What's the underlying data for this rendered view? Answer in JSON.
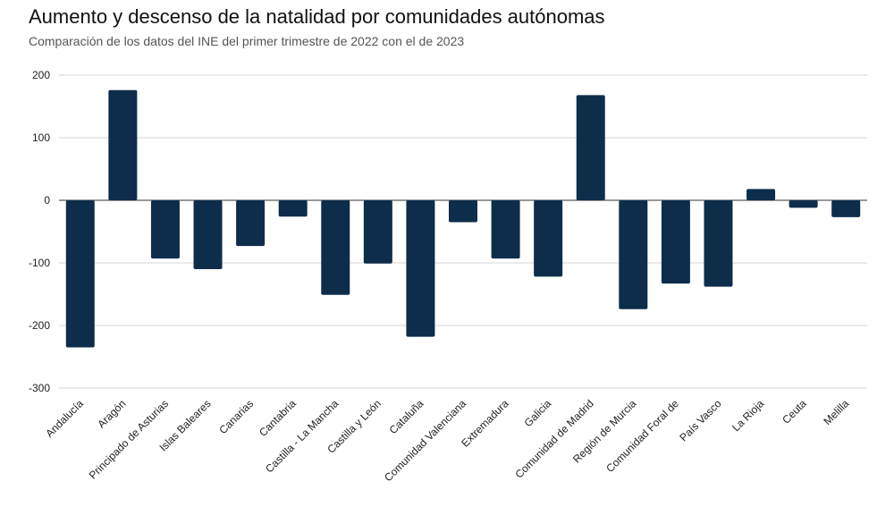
{
  "chart_data": {
    "type": "bar",
    "title": "Aumento y descenso de la natalidad por comunidades autónomas",
    "subtitle": "Comparación de los datos del INE del primer trimestre de 2022 con el de 2023",
    "xlabel": "",
    "ylabel": "",
    "ylim": [
      -300,
      200
    ],
    "yticks": [
      200,
      100,
      0,
      -100,
      -200,
      -300
    ],
    "ytick_labels": [
      "200",
      "100",
      "0",
      "-100",
      "-200",
      "-300"
    ],
    "grid": true,
    "bar_color": "#0e2d4b",
    "categories": [
      "Andalucía",
      "Aragón",
      "Principado de Asturias",
      "Islas Baleares",
      "Canarias",
      "Cantabria",
      "Castilla - La Mancha",
      "Castilla y León",
      "Cataluña",
      "Comunidad Valenciana",
      "Extremadura",
      "Galicia",
      "Comunidad de Madrid",
      "Región de Murcia",
      "Comunidad Foral de",
      "País Vasco",
      "La Rioja",
      "Ceuta",
      "Melilla"
    ],
    "values": [
      -235,
      176,
      -93,
      -110,
      -73,
      -26,
      -151,
      -101,
      -218,
      -35,
      -93,
      -122,
      168,
      -174,
      -133,
      -138,
      18,
      -12,
      -27
    ]
  }
}
